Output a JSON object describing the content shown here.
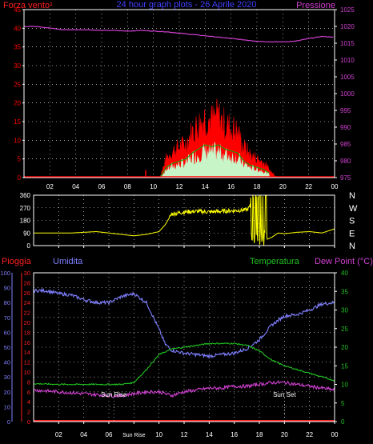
{
  "title": "24 hour graph plots - 26 Aprile 2020",
  "colors": {
    "background": "#000000",
    "wind": "#ff0000",
    "gust_fill": "#ff0000",
    "avg_fill": "#c8f5c8",
    "avg_line": "#00b000",
    "pressure": "#d040d0",
    "direction": "#ffff00",
    "rain": "#ff2020",
    "humidity": "#7f7fff",
    "temperature": "#20c020",
    "dew_point": "#d040d0",
    "grid": "#ffffff",
    "axis": "#ffffff"
  },
  "time_ticks": [
    "02",
    "04",
    "06",
    "08",
    "10",
    "12",
    "14",
    "16",
    "18",
    "20",
    "22",
    "00"
  ],
  "time_ticks_bottom": [
    "02",
    "04",
    "06",
    "Sun Rise",
    "10",
    "12",
    "14",
    "16",
    "18",
    "20",
    "22",
    "00"
  ],
  "panel1": {
    "left_label": "Forza vento¹",
    "right_label": "Pressione",
    "left_ticks": [
      0,
      5,
      10,
      15,
      20,
      25,
      30,
      35,
      40,
      45
    ],
    "right_ticks": [
      975,
      980,
      985,
      990,
      995,
      1000,
      1005,
      1010,
      1015,
      1020,
      1025
    ]
  },
  "panel2": {
    "left_ticks": [
      0,
      90,
      180,
      270,
      360
    ],
    "right_labels": [
      "N",
      "W",
      "S",
      "E",
      "N"
    ]
  },
  "panel3": {
    "left1_label": "Pioggia",
    "left2_label": "Umidita",
    "right1_label": "Temperatura",
    "right2_label": "Dew Point (°C)",
    "hum_ticks": [
      0,
      10,
      20,
      30,
      40,
      50,
      60,
      70,
      80,
      90,
      100
    ],
    "rain_ticks": [
      0,
      2,
      4,
      6,
      8,
      10,
      12,
      14,
      16,
      18,
      20,
      22,
      24,
      26,
      28,
      30
    ],
    "temp_ticks": [
      0,
      5,
      10,
      15,
      20,
      25,
      30,
      35,
      40
    ],
    "sunrise_label": "Sun Rise",
    "sunset_label": "Sun Set",
    "sunrise_hour": 6.4,
    "sunset_hour": 20.0
  },
  "chart_data": [
    {
      "type": "line",
      "series": [
        {
          "name": "Pressione",
          "x": [
            0,
            1,
            2,
            3,
            4,
            5,
            6,
            7,
            8,
            9,
            10,
            11,
            12,
            13,
            14,
            15,
            16,
            17,
            18,
            19,
            20,
            21,
            22,
            23,
            24
          ],
          "y": [
            1020,
            1020,
            1019.5,
            1019,
            1019,
            1019,
            1018.8,
            1018.8,
            1018.6,
            1018.8,
            1018.6,
            1018.4,
            1018,
            1017.6,
            1017.2,
            1016.8,
            1016.4,
            1016,
            1015.6,
            1015.4,
            1015.4,
            1015.6,
            1016.4,
            1017,
            1016.8
          ]
        },
        {
          "name": "Forza vento¹",
          "x": [
            0,
            8,
            9.5,
            10.5,
            11,
            11.5,
            12,
            12.5,
            13,
            13.5,
            14,
            14.5,
            15,
            15.5,
            16,
            16.5,
            17,
            17.5,
            18,
            18.5,
            19,
            19.5,
            24
          ],
          "y": [
            0,
            0,
            0,
            0,
            5,
            7,
            8,
            9,
            12,
            14,
            16,
            15,
            16,
            14,
            13,
            12,
            8,
            6,
            5,
            4,
            2,
            0,
            0
          ]
        }
      ],
      "ylim": [
        0,
        45
      ],
      "y2lim": [
        975,
        1025
      ],
      "xlim": [
        0,
        24
      ]
    },
    {
      "type": "line",
      "series": [
        {
          "x": [
            0,
            2,
            3,
            4,
            5,
            6,
            7,
            8,
            9,
            10,
            10.5,
            11,
            12,
            13,
            14,
            15,
            16,
            17,
            17.5,
            18,
            18.5,
            19,
            19.5,
            20,
            21,
            22,
            23,
            24
          ],
          "y": [
            90,
            90,
            90,
            95,
            100,
            90,
            80,
            70,
            80,
            100,
            150,
            225,
            240,
            245,
            240,
            245,
            250,
            255,
            300,
            150,
            40,
            60,
            90,
            85,
            95,
            100,
            90,
            120
          ]
        }
      ],
      "ylim": [
        0,
        360
      ],
      "xlim": [
        0,
        24
      ]
    },
    {
      "type": "line",
      "series": [
        {
          "name": "Umidita",
          "x": [
            0,
            1,
            2,
            3,
            4,
            5,
            6,
            7,
            8,
            9,
            10,
            10.5,
            11,
            12,
            13,
            14,
            15,
            16,
            17,
            18,
            19,
            20,
            21,
            22,
            23,
            24
          ],
          "y": [
            88,
            88,
            86,
            85,
            82,
            80,
            80,
            84,
            86,
            80,
            62,
            52,
            48,
            46,
            45,
            44,
            45,
            46,
            49,
            55,
            65,
            71,
            72,
            75,
            79,
            80
          ]
        },
        {
          "name": "Temperatura",
          "x": [
            0,
            2,
            4,
            6,
            7,
            8,
            9,
            10,
            11,
            12,
            13,
            14,
            15,
            16,
            17,
            18,
            19,
            20,
            21,
            22,
            23,
            24
          ],
          "y": [
            10.2,
            10,
            10,
            10,
            10,
            10.5,
            14,
            18,
            19.5,
            20,
            20.5,
            21,
            21,
            21,
            20.5,
            19,
            16.5,
            15,
            14,
            13,
            12,
            11
          ]
        },
        {
          "name": "Dew Point (°C)",
          "x": [
            0,
            2,
            4,
            6,
            7,
            8,
            9,
            10,
            11,
            12,
            13,
            14,
            15,
            16,
            17,
            18,
            19,
            20,
            21,
            22,
            23,
            24
          ],
          "y": [
            8.5,
            8,
            7.5,
            7,
            7,
            7.5,
            8,
            8,
            7,
            8,
            8.5,
            9,
            9,
            9.5,
            9.5,
            10,
            10.5,
            10.5,
            10,
            9.5,
            9,
            8.5
          ]
        },
        {
          "name": "Pioggia",
          "x": [
            0,
            24
          ],
          "y": [
            0,
            0
          ]
        }
      ],
      "ylim": [
        0,
        100
      ],
      "y_rain_lim": [
        0,
        30
      ],
      "y_temp_lim": [
        0,
        40
      ],
      "xlim": [
        0,
        24
      ]
    }
  ]
}
